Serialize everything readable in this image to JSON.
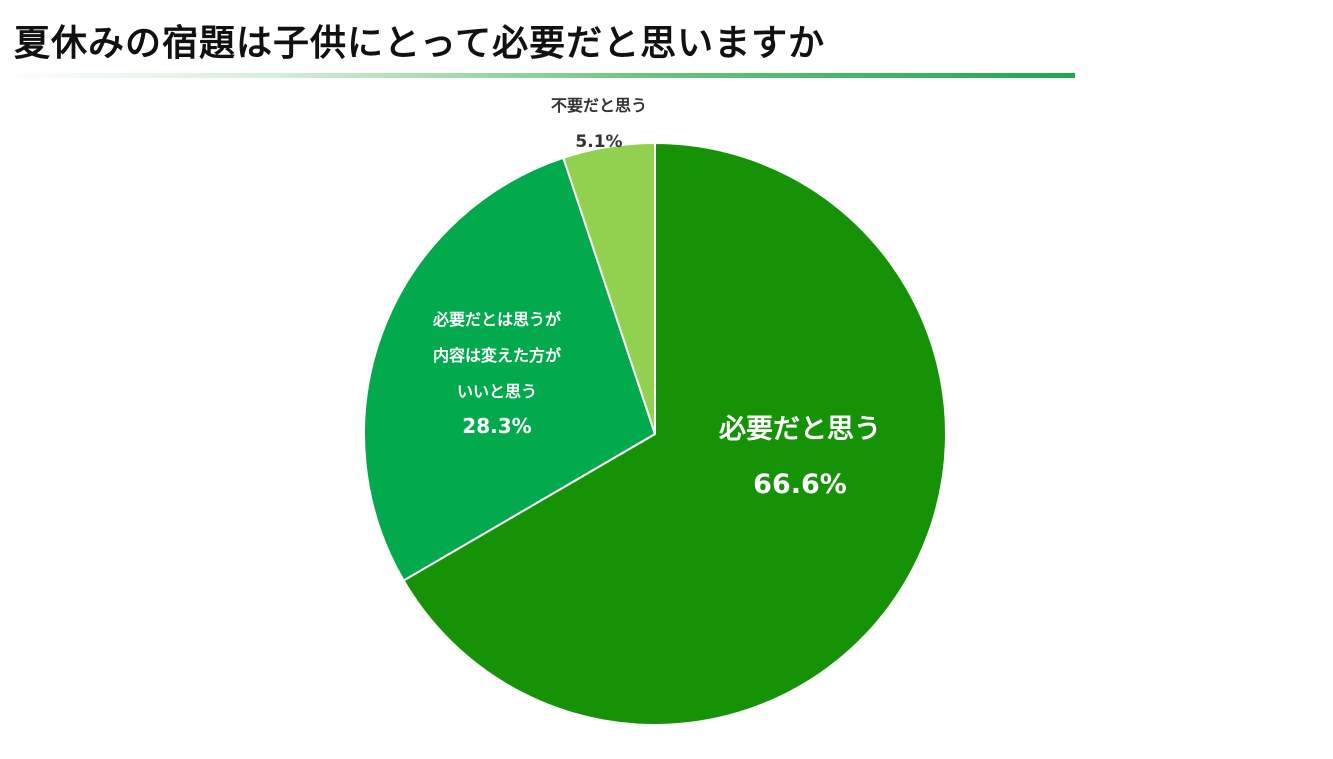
{
  "title": "夏休みの宿題は子供にとって必要だと思いますか",
  "chart_data": {
    "type": "pie",
    "title": "夏休みの宿題は子供にとって必要だと思いますか",
    "start": "top",
    "direction": "clockwise",
    "slices": [
      {
        "label_lines": [
          "必要だと思う"
        ],
        "value": 66.6,
        "value_label": "66.6%",
        "color": "#169206",
        "label_color": "#ffffff"
      },
      {
        "label_lines": [
          "必要だとは思うが",
          "内容は変えた方が",
          "いいと思う"
        ],
        "value": 28.3,
        "value_label": "28.3%",
        "color": "#02aa4d",
        "label_color": "#ffffff"
      },
      {
        "label_lines": [
          "不要だと思う"
        ],
        "value": 5.1,
        "value_label": "5.1%",
        "color": "#92d050",
        "label_color": "#333333"
      }
    ]
  }
}
